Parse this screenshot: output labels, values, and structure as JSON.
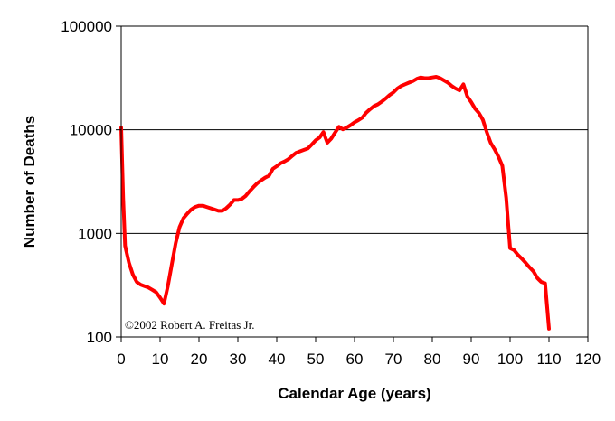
{
  "chart_data": {
    "type": "line",
    "title": "",
    "xlabel": "Calendar Age (years)",
    "ylabel": "Number of Deaths",
    "yscale": "log",
    "xlim": [
      0,
      120
    ],
    "ylim": [
      100,
      100000
    ],
    "x_ticks": [
      0,
      10,
      20,
      30,
      40,
      50,
      60,
      70,
      80,
      90,
      100,
      110,
      120
    ],
    "x_tick_labels": [
      "0",
      "10",
      "20",
      "30",
      "40",
      "50",
      "60",
      "70",
      "80",
      "90",
      "100",
      "110",
      "120"
    ],
    "y_ticks": [
      100,
      1000,
      10000,
      100000
    ],
    "y_tick_labels": [
      "100",
      "1000",
      "10000",
      "100000"
    ],
    "horizontal_gridlines_at": [
      1000,
      10000
    ],
    "annotation": "©2002 Robert A. Freitas Jr.",
    "colors": {
      "series": "#ff0000",
      "axes": "#000000",
      "gridlines": "#000000",
      "background": "#ffffff"
    },
    "series": [
      {
        "x": [
          0,
          0.5,
          1,
          2,
          3,
          4,
          5,
          6,
          7,
          8,
          9,
          10,
          11,
          12,
          13,
          14,
          15,
          16,
          17,
          18,
          19,
          20,
          21,
          22,
          23,
          24,
          25,
          26,
          27,
          28,
          29,
          30,
          31,
          32,
          33,
          34,
          35,
          36,
          37,
          38,
          39,
          40,
          41,
          42,
          43,
          44,
          45,
          46,
          47,
          48,
          49,
          50,
          51,
          52,
          53,
          54,
          55,
          56,
          57,
          58,
          59,
          60,
          61,
          62,
          63,
          64,
          65,
          66,
          67,
          68,
          69,
          70,
          71,
          72,
          73,
          74,
          75,
          76,
          77,
          78,
          79,
          80,
          81,
          82,
          83,
          84,
          85,
          86,
          87,
          88,
          89,
          90,
          91,
          92,
          93,
          94,
          95,
          96,
          97,
          98,
          99,
          100,
          101,
          102,
          103,
          104,
          105,
          106,
          107,
          108,
          109,
          110
        ],
        "y": [
          10500,
          2200,
          760,
          520,
          400,
          340,
          320,
          310,
          300,
          285,
          270,
          240,
          210,
          310,
          500,
          800,
          1150,
          1400,
          1550,
          1700,
          1800,
          1850,
          1850,
          1800,
          1750,
          1700,
          1650,
          1650,
          1750,
          1900,
          2100,
          2100,
          2150,
          2300,
          2550,
          2800,
          3050,
          3250,
          3450,
          3600,
          4200,
          4450,
          4750,
          4950,
          5200,
          5600,
          6000,
          6200,
          6400,
          6600,
          7200,
          7900,
          8400,
          9500,
          7500,
          8200,
          9400,
          10700,
          10100,
          10500,
          11100,
          11800,
          12400,
          13100,
          14600,
          15800,
          16900,
          17600,
          18700,
          20000,
          21600,
          23000,
          25000,
          26500,
          27500,
          28500,
          29500,
          31000,
          32000,
          31500,
          31500,
          32000,
          32500,
          31500,
          30000,
          28500,
          26500,
          25000,
          24000,
          27500,
          21000,
          18500,
          16000,
          14500,
          12500,
          9500,
          7500,
          6500,
          5500,
          4500,
          2200,
          720,
          690,
          620,
          570,
          520,
          470,
          430,
          370,
          340,
          330,
          120
        ]
      }
    ]
  }
}
